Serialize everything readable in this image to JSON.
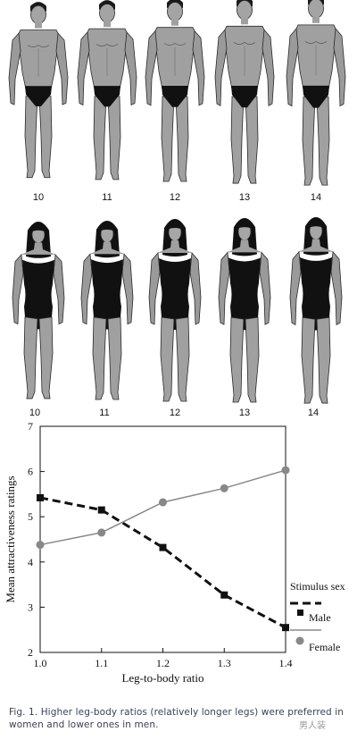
{
  "figure": {
    "male_row": {
      "labels": [
        "10",
        "11",
        "12",
        "13",
        "14"
      ]
    },
    "female_row": {
      "labels": [
        "10",
        "11",
        "12",
        "13",
        "14"
      ]
    }
  },
  "chart_data": {
    "type": "line",
    "xlabel": "Leg-to-body ratio",
    "ylabel": "Mean attractiveness ratings",
    "x": [
      1.0,
      1.1,
      1.2,
      1.3,
      1.4
    ],
    "x_tick_labels": [
      "1.0",
      "1.1",
      "1.2",
      "1.3",
      "1.4"
    ],
    "y_ticks": [
      2,
      3,
      4,
      5,
      6,
      7
    ],
    "xlim": [
      1.0,
      1.4
    ],
    "ylim": [
      2,
      7
    ],
    "grid": false,
    "legend_title": "Stimulus sex",
    "legend_position": "right",
    "series": [
      {
        "name": "Male",
        "values": [
          5.42,
          5.15,
          4.32,
          3.27,
          2.55
        ],
        "color": "#111111",
        "style": "dashed",
        "marker": "square"
      },
      {
        "name": "Female",
        "values": [
          4.38,
          4.65,
          5.32,
          5.63,
          6.03
        ],
        "color": "#888888",
        "style": "solid",
        "marker": "circle"
      }
    ]
  },
  "caption": {
    "text": "Fig. 1. Higher leg-body ratios (relatively longer legs) were preferred in women and lower ones in men."
  },
  "watermark": {
    "text": "男人装"
  },
  "colors": {
    "skin": "#9c9c9c",
    "garment": "#111111",
    "outline": "#2a2a2a"
  }
}
